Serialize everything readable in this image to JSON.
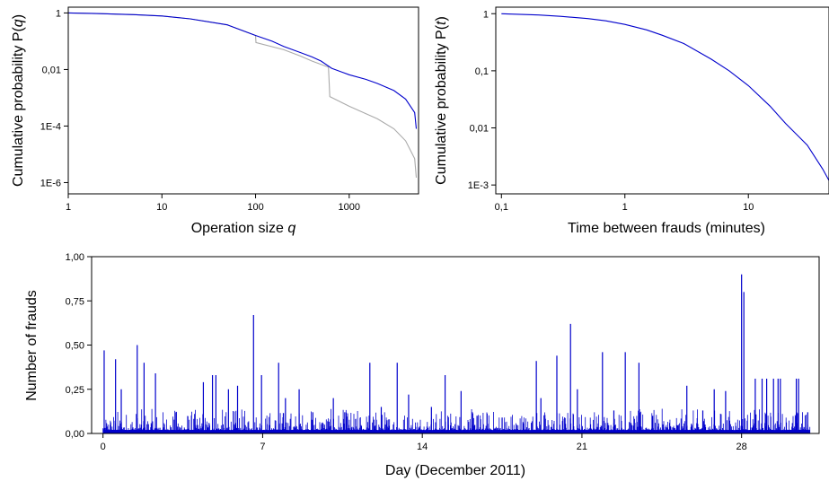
{
  "chart_data": [
    {
      "type": "line",
      "xlabel": "Operation size",
      "xlabel_var": "q",
      "ylabel": "Cumulative probability P(",
      "ylabel_var": "q",
      "ylabel_close": ")",
      "xscale": "log",
      "yscale": "log",
      "xlim": [
        1,
        5500
      ],
      "ylim": [
        4e-07,
        1.6
      ],
      "xticks": [
        {
          "value": 1,
          "label": "1"
        },
        {
          "value": 10,
          "label": "10"
        },
        {
          "value": 100,
          "label": "100"
        },
        {
          "value": 1000,
          "label": "1000"
        }
      ],
      "yticks": [
        {
          "value": 1,
          "label": "1"
        },
        {
          "value": 0.01,
          "label": "0,01"
        },
        {
          "value": 0.0001,
          "label": "1E-4"
        },
        {
          "value": 1e-06,
          "label": "1E-6"
        }
      ],
      "grid": false,
      "series": [
        {
          "color": "#0000cc",
          "x": [
            1,
            2,
            5,
            10,
            20,
            50,
            100,
            150,
            200,
            300,
            400,
            500,
            650,
            1000,
            1500,
            2000,
            3000,
            4000,
            5000,
            5200
          ],
          "y": [
            1,
            0.95,
            0.87,
            0.78,
            0.62,
            0.38,
            0.16,
            0.1,
            0.065,
            0.04,
            0.028,
            0.02,
            0.011,
            0.0065,
            0.0045,
            0.0032,
            0.0018,
            0.0009,
            0.0003,
            8e-05
          ]
        },
        {
          "color": "#aaaaaa",
          "x": [
            1,
            2,
            5,
            10,
            20,
            50,
            100,
            101,
            200,
            300,
            400,
            600,
            620,
            1000,
            2000,
            3000,
            4000,
            5000,
            5200
          ],
          "y": [
            1,
            0.95,
            0.87,
            0.78,
            0.62,
            0.38,
            0.16,
            0.09,
            0.05,
            0.03,
            0.02,
            0.012,
            0.0011,
            0.0005,
            0.00018,
            8e-05,
            3e-05,
            7e-06,
            1.5e-06
          ]
        }
      ]
    },
    {
      "type": "line",
      "xlabel": "Time between frauds (minutes)",
      "ylabel": "Cumulative probability P(",
      "ylabel_var": "t",
      "ylabel_close": ")",
      "xscale": "log",
      "yscale": "log",
      "xlim": [
        0.09,
        45
      ],
      "ylim": [
        0.0007,
        1.3
      ],
      "xticks": [
        {
          "value": 0.1,
          "label": "0,1"
        },
        {
          "value": 1,
          "label": "1"
        },
        {
          "value": 10,
          "label": "10"
        }
      ],
      "yticks": [
        {
          "value": 1,
          "label": "1"
        },
        {
          "value": 0.1,
          "label": "0,1"
        },
        {
          "value": 0.01,
          "label": "0,01"
        },
        {
          "value": 0.001,
          "label": "1E-3"
        }
      ],
      "grid": false,
      "series": [
        {
          "color": "#0000cc",
          "x": [
            0.1,
            0.2,
            0.3,
            0.5,
            0.7,
            1,
            1.5,
            2,
            3,
            5,
            7,
            10,
            15,
            20,
            30,
            40,
            45
          ],
          "y": [
            1,
            0.95,
            0.9,
            0.82,
            0.75,
            0.65,
            0.52,
            0.42,
            0.3,
            0.16,
            0.1,
            0.055,
            0.024,
            0.012,
            0.005,
            0.0019,
            0.0012
          ]
        }
      ]
    },
    {
      "type": "bar",
      "xlabel": "Day (December 2011)",
      "ylabel": "Number of frauds",
      "xlim": [
        -0.5,
        31.4
      ],
      "ylim": [
        0,
        1
      ],
      "xticks": [
        {
          "value": 0,
          "label": "0"
        },
        {
          "value": 7,
          "label": "7"
        },
        {
          "value": 14,
          "label": "14"
        },
        {
          "value": 21,
          "label": "21"
        },
        {
          "value": 28,
          "label": "28"
        }
      ],
      "yticks": [
        {
          "value": 0,
          "label": "0,00"
        },
        {
          "value": 0.25,
          "label": "0,25"
        },
        {
          "value": 0.5,
          "label": "0,50"
        },
        {
          "value": 0.75,
          "label": "0,75"
        },
        {
          "value": 1,
          "label": "1,00"
        }
      ],
      "grid": false,
      "color": "#0000cc",
      "baseline": 0.02,
      "peaks": [
        {
          "x": 0.05,
          "y": 0.47
        },
        {
          "x": 0.55,
          "y": 0.42
        },
        {
          "x": 0.8,
          "y": 0.25
        },
        {
          "x": 1.5,
          "y": 0.5
        },
        {
          "x": 1.8,
          "y": 0.4
        },
        {
          "x": 2.3,
          "y": 0.34
        },
        {
          "x": 3.2,
          "y": 0.12
        },
        {
          "x": 4.4,
          "y": 0.29
        },
        {
          "x": 4.8,
          "y": 0.33
        },
        {
          "x": 4.95,
          "y": 0.33
        },
        {
          "x": 5.5,
          "y": 0.25
        },
        {
          "x": 5.9,
          "y": 0.27
        },
        {
          "x": 6.6,
          "y": 0.67
        },
        {
          "x": 6.95,
          "y": 0.33
        },
        {
          "x": 7.7,
          "y": 0.4
        },
        {
          "x": 8.0,
          "y": 0.2
        },
        {
          "x": 8.6,
          "y": 0.25
        },
        {
          "x": 9.2,
          "y": 0.12
        },
        {
          "x": 10.1,
          "y": 0.2
        },
        {
          "x": 10.6,
          "y": 0.12
        },
        {
          "x": 11.7,
          "y": 0.4
        },
        {
          "x": 12.2,
          "y": 0.15
        },
        {
          "x": 12.9,
          "y": 0.4
        },
        {
          "x": 13.4,
          "y": 0.22
        },
        {
          "x": 14.4,
          "y": 0.15
        },
        {
          "x": 15.0,
          "y": 0.33
        },
        {
          "x": 15.7,
          "y": 0.24
        },
        {
          "x": 16.4,
          "y": 0.1
        },
        {
          "x": 17.5,
          "y": 0.09
        },
        {
          "x": 19.0,
          "y": 0.41
        },
        {
          "x": 19.2,
          "y": 0.2
        },
        {
          "x": 19.9,
          "y": 0.44
        },
        {
          "x": 20.5,
          "y": 0.62
        },
        {
          "x": 20.8,
          "y": 0.25
        },
        {
          "x": 21.9,
          "y": 0.46
        },
        {
          "x": 22.4,
          "y": 0.13
        },
        {
          "x": 22.9,
          "y": 0.46
        },
        {
          "x": 23.5,
          "y": 0.4
        },
        {
          "x": 24.1,
          "y": 0.1
        },
        {
          "x": 25.6,
          "y": 0.27
        },
        {
          "x": 26.3,
          "y": 0.13
        },
        {
          "x": 26.8,
          "y": 0.25
        },
        {
          "x": 27.3,
          "y": 0.24
        },
        {
          "x": 28.0,
          "y": 0.9
        },
        {
          "x": 28.1,
          "y": 0.8
        },
        {
          "x": 28.6,
          "y": 0.31
        },
        {
          "x": 28.9,
          "y": 0.31
        },
        {
          "x": 29.1,
          "y": 0.31
        },
        {
          "x": 29.4,
          "y": 0.31
        },
        {
          "x": 29.6,
          "y": 0.31
        },
        {
          "x": 29.7,
          "y": 0.31
        },
        {
          "x": 30.4,
          "y": 0.31
        },
        {
          "x": 30.5,
          "y": 0.31
        },
        {
          "x": 30.9,
          "y": 0.12
        }
      ]
    }
  ]
}
